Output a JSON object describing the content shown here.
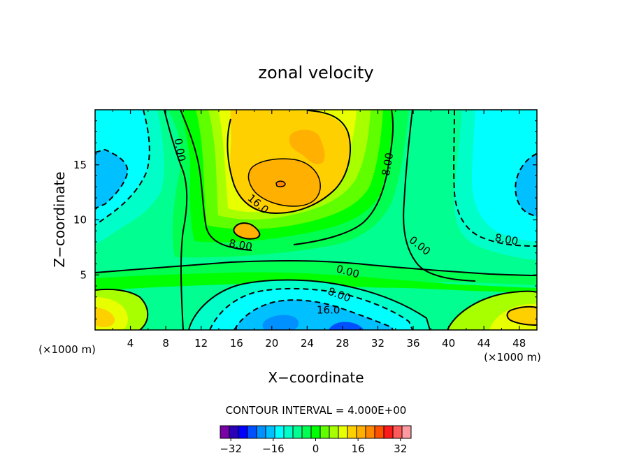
{
  "chart_data": {
    "type": "contour",
    "title": "zonal velocity",
    "xlabel": "X−coordinate",
    "ylabel": "Z−coordinate",
    "x_unit_left": "(×1000 m)",
    "x_unit_right": "(×1000 m)",
    "xlim": [
      0,
      50
    ],
    "ylim": [
      0,
      20
    ],
    "x_ticks": [
      4,
      8,
      12,
      16,
      20,
      24,
      28,
      32,
      36,
      40,
      44,
      48
    ],
    "y_ticks": [
      5,
      10,
      15
    ],
    "contour_interval_text": "CONTOUR INTERVAL = 4.000E+00",
    "colorbar": {
      "min": -36,
      "max": 36,
      "step": 4,
      "tick_values": [
        -32,
        -16,
        0,
        16,
        32
      ],
      "tick_labels": [
        "−32",
        "−16",
        "0",
        "16",
        "32"
      ],
      "colors": [
        "#7a00a8",
        "#2a00b8",
        "#0000ff",
        "#0050ff",
        "#0090ff",
        "#00c0ff",
        "#00ffff",
        "#00ffc8",
        "#00ff90",
        "#00ff50",
        "#00ff00",
        "#60ff00",
        "#a8ff00",
        "#e8ff00",
        "#ffd000",
        "#ffb000",
        "#ff8800",
        "#ff5000",
        "#ff1a1a",
        "#ff5a5a",
        "#ff9aa0"
      ]
    },
    "contour_labels": [
      {
        "text": "0.00",
        "x": 9.2,
        "y": 16.3,
        "angle": 80
      },
      {
        "text": "16.0",
        "x": 18.2,
        "y": 11.2,
        "angle": 40
      },
      {
        "text": "8.00",
        "x": 33.5,
        "y": 15.0,
        "angle": -80
      },
      {
        "text": "8.00",
        "x": 16.4,
        "y": 7.4,
        "angle": 10
      },
      {
        "text": "0.00",
        "x": 36.5,
        "y": 7.4,
        "angle": 38
      },
      {
        "text": "8.00",
        "x": 46.5,
        "y": 7.9,
        "angle": 10
      },
      {
        "text": "0.00",
        "x": 28.5,
        "y": 5.0,
        "angle": 15
      },
      {
        "text": "8.00",
        "x": 27.5,
        "y": 2.9,
        "angle": 20
      },
      {
        "text": "16.0",
        "x": 26.4,
        "y": 1.5,
        "angle": 0
      }
    ]
  }
}
